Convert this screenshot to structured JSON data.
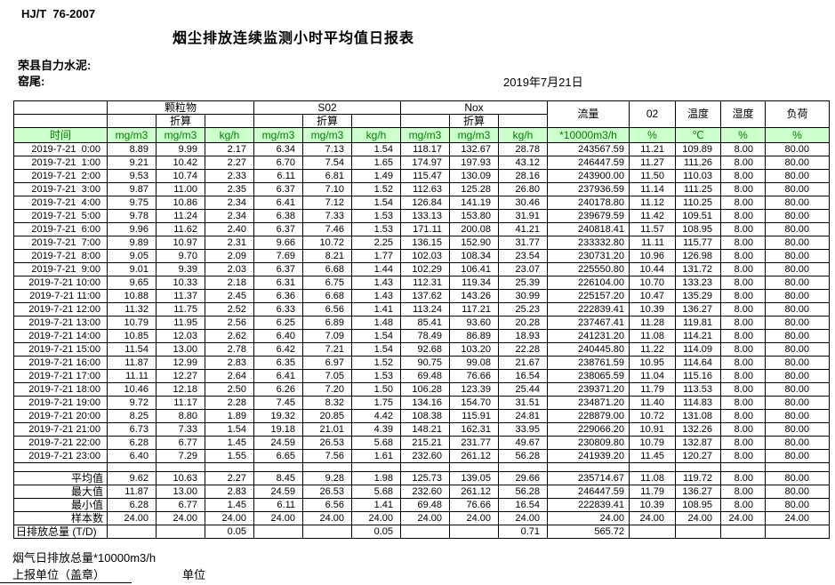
{
  "page": {
    "doc_code": "HJ/T  76-2007",
    "title": "烟尘排放连续监测小时平均值日报表",
    "company": "荣县自力水泥:",
    "location": "窑尾:",
    "date": "2019年7月21日"
  },
  "table": {
    "time_label": "时间",
    "conv_label": "折算",
    "groups": {
      "pm": "颗粒物",
      "so2": "S02",
      "nox": "Nox",
      "flow": "流量",
      "o2": "02",
      "temp": "温度",
      "humidity": "湿度",
      "load": "负荷"
    },
    "units": {
      "mg": "mg/m3",
      "kg": "kg/h",
      "flow": "*10000m3/h",
      "pct": "%",
      "temp": "℃"
    },
    "rows": [
      [
        "2019-7-21  0:00",
        "8.89",
        "9.99",
        "2.17",
        "6.34",
        "7.13",
        "1.54",
        "118.17",
        "132.67",
        "28.78",
        "243567.59",
        "11.21",
        "109.89",
        "8.00",
        "80.00"
      ],
      [
        "2019-7-21  1:00",
        "9.21",
        "10.42",
        "2.27",
        "6.70",
        "7.54",
        "1.65",
        "174.97",
        "197.93",
        "43.12",
        "246447.59",
        "11.27",
        "111.26",
        "8.00",
        "80.00"
      ],
      [
        "2019-7-21  2:00",
        "9.53",
        "10.74",
        "2.33",
        "6.11",
        "6.81",
        "1.49",
        "115.47",
        "130.09",
        "28.16",
        "243900.00",
        "11.50",
        "110.03",
        "8.00",
        "80.00"
      ],
      [
        "2019-7-21  3:00",
        "9.87",
        "11.00",
        "2.35",
        "6.37",
        "7.10",
        "1.52",
        "112.63",
        "125.28",
        "26.80",
        "237936.59",
        "11.14",
        "111.25",
        "8.00",
        "80.00"
      ],
      [
        "2019-7-21  4:00",
        "9.75",
        "10.86",
        "2.34",
        "6.41",
        "7.12",
        "1.54",
        "126.84",
        "141.19",
        "30.46",
        "240178.80",
        "11.12",
        "110.25",
        "8.00",
        "80.00"
      ],
      [
        "2019-7-21  5:00",
        "9.78",
        "11.24",
        "2.34",
        "6.38",
        "7.33",
        "1.53",
        "133.13",
        "153.80",
        "31.91",
        "239679.59",
        "11.42",
        "109.51",
        "8.00",
        "80.00"
      ],
      [
        "2019-7-21  6:00",
        "9.96",
        "11.62",
        "2.40",
        "6.37",
        "7.46",
        "1.53",
        "171.11",
        "200.08",
        "41.21",
        "240818.41",
        "11.57",
        "108.95",
        "8.00",
        "80.00"
      ],
      [
        "2019-7-21  7:00",
        "9.89",
        "10.97",
        "2.31",
        "9.66",
        "10.72",
        "2.25",
        "136.15",
        "152.90",
        "31.77",
        "233332.80",
        "11.11",
        "115.77",
        "8.00",
        "80.00"
      ],
      [
        "2019-7-21  8:00",
        "9.05",
        "9.70",
        "2.09",
        "7.69",
        "8.21",
        "1.77",
        "102.03",
        "108.34",
        "23.54",
        "230731.20",
        "10.96",
        "126.98",
        "8.00",
        "80.00"
      ],
      [
        "2019-7-21  9:00",
        "9.01",
        "9.39",
        "2.03",
        "6.37",
        "6.68",
        "1.44",
        "102.29",
        "106.41",
        "23.07",
        "225550.80",
        "10.44",
        "131.72",
        "8.00",
        "80.00"
      ],
      [
        "2019-7-21 10:00",
        "9.65",
        "10.33",
        "2.18",
        "6.31",
        "6.75",
        "1.43",
        "112.31",
        "119.34",
        "25.39",
        "226104.00",
        "10.70",
        "133.23",
        "8.00",
        "80.00"
      ],
      [
        "2019-7-21 11:00",
        "10.88",
        "11.37",
        "2.45",
        "6.36",
        "6.68",
        "1.43",
        "137.62",
        "143.26",
        "30.99",
        "225157.20",
        "10.47",
        "135.29",
        "8.00",
        "80.00"
      ],
      [
        "2019-7-21 12:00",
        "11.32",
        "11.75",
        "2.52",
        "6.33",
        "6.56",
        "1.41",
        "113.24",
        "117.21",
        "25.23",
        "222839.41",
        "10.39",
        "136.27",
        "8.00",
        "80.00"
      ],
      [
        "2019-7-21 13:00",
        "10.79",
        "11.95",
        "2.56",
        "6.25",
        "6.89",
        "1.48",
        "85.41",
        "93.60",
        "20.28",
        "237467.41",
        "11.28",
        "119.81",
        "8.00",
        "80.00"
      ],
      [
        "2019-7-21 14:00",
        "10.85",
        "12.03",
        "2.62",
        "6.40",
        "7.09",
        "1.54",
        "78.49",
        "86.89",
        "18.93",
        "241231.20",
        "11.08",
        "114.21",
        "8.00",
        "80.00"
      ],
      [
        "2019-7-21 15:00",
        "11.54",
        "13.00",
        "2.78",
        "6.42",
        "7.21",
        "1.54",
        "92.68",
        "103.20",
        "22.28",
        "240445.80",
        "11.22",
        "114.09",
        "8.00",
        "80.00"
      ],
      [
        "2019-7-21 16:00",
        "11.87",
        "12.99",
        "2.83",
        "6.35",
        "6.97",
        "1.52",
        "90.75",
        "99.08",
        "21.67",
        "238761.59",
        "10.95",
        "114.64",
        "8.00",
        "80.00"
      ],
      [
        "2019-7-21 17:00",
        "11.11",
        "12.27",
        "2.64",
        "6.41",
        "7.05",
        "1.53",
        "69.48",
        "76.66",
        "16.54",
        "238065.59",
        "11.04",
        "115.16",
        "8.00",
        "80.00"
      ],
      [
        "2019-7-21 18:00",
        "10.46",
        "12.18",
        "2.50",
        "6.26",
        "7.20",
        "1.50",
        "106.28",
        "123.39",
        "25.44",
        "239371.20",
        "11.79",
        "113.53",
        "8.00",
        "80.00"
      ],
      [
        "2019-7-21 19:00",
        "9.72",
        "11.17",
        "2.28",
        "7.45",
        "8.32",
        "1.75",
        "134.16",
        "154.70",
        "31.51",
        "234871.20",
        "11.40",
        "114.83",
        "8.00",
        "80.00"
      ],
      [
        "2019-7-21 20:00",
        "8.25",
        "8.80",
        "1.89",
        "19.32",
        "20.85",
        "4.42",
        "108.38",
        "115.91",
        "24.81",
        "228879.00",
        "10.72",
        "131.08",
        "8.00",
        "80.00"
      ],
      [
        "2019-7-21 21:00",
        "6.73",
        "7.33",
        "1.54",
        "19.18",
        "21.01",
        "4.39",
        "148.21",
        "162.31",
        "33.95",
        "229066.20",
        "10.91",
        "132.26",
        "8.00",
        "80.00"
      ],
      [
        "2019-7-21 22:00",
        "6.28",
        "6.77",
        "1.45",
        "24.59",
        "26.53",
        "5.68",
        "215.21",
        "231.77",
        "49.67",
        "230809.80",
        "10.79",
        "132.87",
        "8.00",
        "80.00"
      ],
      [
        "2019-7-21 23:00",
        "6.40",
        "7.29",
        "1.55",
        "6.65",
        "7.56",
        "1.61",
        "232.60",
        "261.12",
        "56.28",
        "241939.20",
        "11.45",
        "120.27",
        "8.00",
        "80.00"
      ]
    ],
    "summary_rows": [
      {
        "label": "平均值",
        "align": "right",
        "values": [
          "9.62",
          "10.63",
          "2.27",
          "8.45",
          "9.28",
          "1.98",
          "125.73",
          "139.05",
          "29.66",
          "235714.67",
          "11.08",
          "119.72",
          "8.00",
          "80.00"
        ]
      },
      {
        "label": "最大值",
        "align": "right",
        "values": [
          "11.87",
          "13.00",
          "2.83",
          "24.59",
          "26.53",
          "5.68",
          "232.60",
          "261.12",
          "56.28",
          "246447.59",
          "11.79",
          "136.27",
          "8.00",
          "80.00"
        ]
      },
      {
        "label": "最小值",
        "align": "right",
        "values": [
          "6.28",
          "6.77",
          "1.45",
          "6.11",
          "6.56",
          "1.41",
          "69.48",
          "76.66",
          "16.54",
          "222839.41",
          "10.39",
          "108.95",
          "8.00",
          "80.00"
        ]
      },
      {
        "label": "样本数",
        "align": "right",
        "values": [
          "24.00",
          "24.00",
          "24.00",
          "24.00",
          "24.00",
          "24.00",
          "24.00",
          "24.00",
          "24.00",
          "24.00",
          "24.00",
          "24.00",
          "24.00",
          "24.00"
        ]
      },
      {
        "label": "日排放总量 (T/D)",
        "align": "left",
        "values": [
          "",
          "",
          "0.05",
          "",
          "",
          "0.05",
          "",
          "",
          "0.71",
          "565.72",
          "",
          "",
          "",
          ""
        ]
      }
    ]
  },
  "footer": {
    "flue_total": "烟气日排放总量*10000m3/h",
    "report_unit": "上报单位（盖章）",
    "unit_label": "单位"
  },
  "colors": {
    "header_bg": "#ccffcc",
    "header_text": "#008000",
    "border": "#000000"
  }
}
